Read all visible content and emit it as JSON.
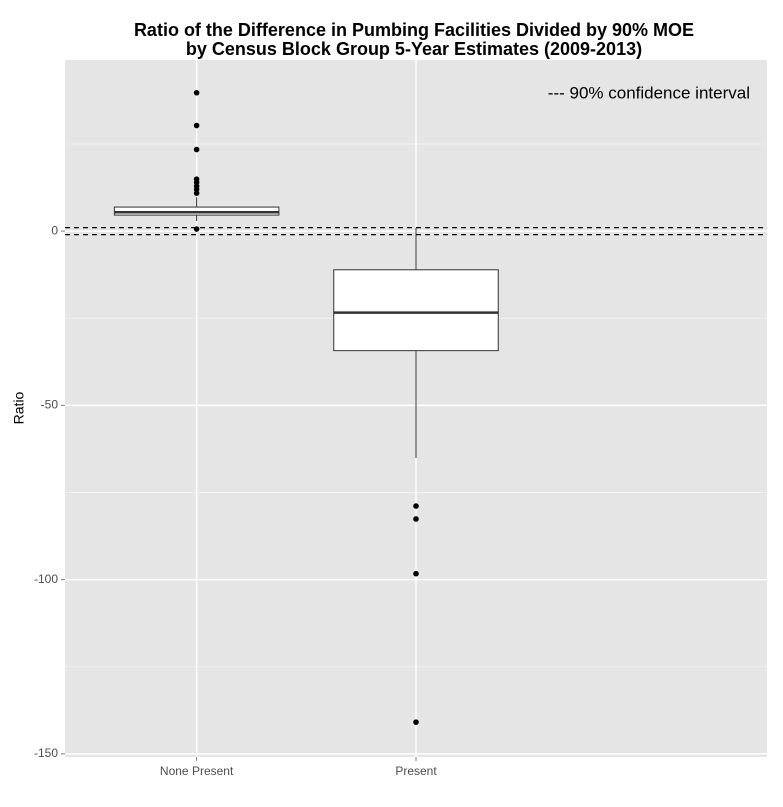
{
  "chart_data": {
    "type": "box",
    "title": [
      "Ratio of the Difference in Pumbing Facilities Divided by 90% MOE",
      "by Census Block Group 5-Year Estimates (2009-2013)"
    ],
    "y_label": "Ratio",
    "annotation": "--- 90% confidence interval",
    "categories": [
      "None Present",
      "Present"
    ],
    "boxes": [
      {
        "whisker_low": 2.9,
        "q1": 4.6,
        "median": 5.4,
        "q3": 6.9,
        "whisker_high": 9.7,
        "outliers": [
          0.6,
          10.9,
          12,
          12.9,
          14,
          14.9,
          23.4,
          30.3,
          39.7
        ]
      },
      {
        "whisker_low": -65.1,
        "q1": -34.3,
        "median": -23.4,
        "q3": -11.1,
        "whisker_high": 0.9,
        "outliers": [
          -78.9,
          -82.6,
          -98.3,
          -140.9
        ]
      }
    ],
    "hlines": [
      1,
      -1
    ],
    "ylim": [
      -150.9,
      49.1
    ],
    "yticks": [
      -150,
      -100,
      -50,
      0
    ],
    "minor_yticks": [
      -125,
      -75,
      -25,
      25
    ],
    "grid": true,
    "panel_color": "#e5e5e5",
    "box_fill": "#ffffff",
    "line_color": "#333333"
  }
}
